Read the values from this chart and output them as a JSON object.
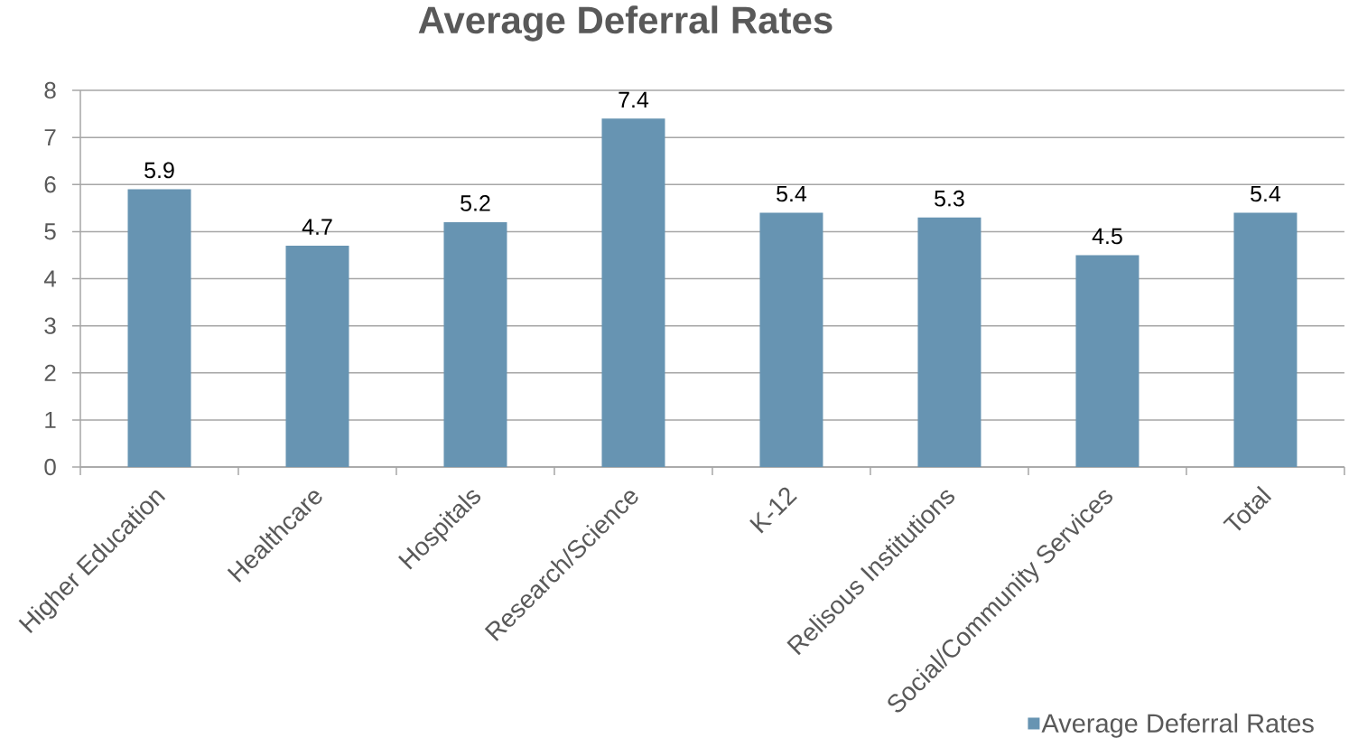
{
  "chart_data": {
    "type": "bar",
    "title": "Average Deferral Rates",
    "categories": [
      "Higher Education",
      "Healthcare",
      "Hospitals",
      "Research/Science",
      "K-12",
      "Relisous Institutions",
      "Social/Community Services",
      "Total"
    ],
    "series": [
      {
        "name": "Average Deferral Rates",
        "color": "#6794b2",
        "values": [
          5.9,
          4.7,
          5.2,
          7.4,
          5.4,
          5.3,
          4.5,
          5.4
        ]
      }
    ],
    "ylim": [
      0,
      8
    ],
    "yticks": [
      0,
      1,
      2,
      3,
      4,
      5,
      6,
      7,
      8
    ],
    "grid": "y",
    "legend": "bottom right",
    "data_labels": true
  }
}
